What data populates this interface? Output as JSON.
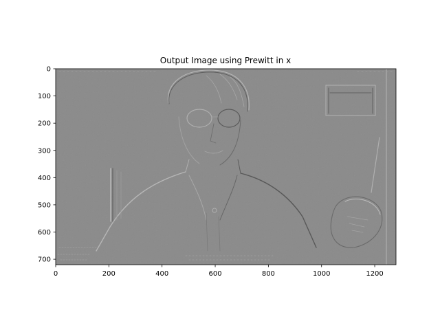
{
  "chart_data": {
    "type": "image",
    "title": "Output Image using Prewitt in x",
    "xlabel": "",
    "ylabel": "",
    "xlim": [
      0,
      1280
    ],
    "ylim": [
      720,
      0
    ],
    "x_ticks": [
      0,
      200,
      400,
      600,
      800,
      1000,
      1200
    ],
    "y_ticks": [
      0,
      100,
      200,
      300,
      400,
      500,
      600,
      700
    ],
    "grid": false,
    "image_description_colormap": "gray",
    "background_color": "#8a8a8a"
  }
}
